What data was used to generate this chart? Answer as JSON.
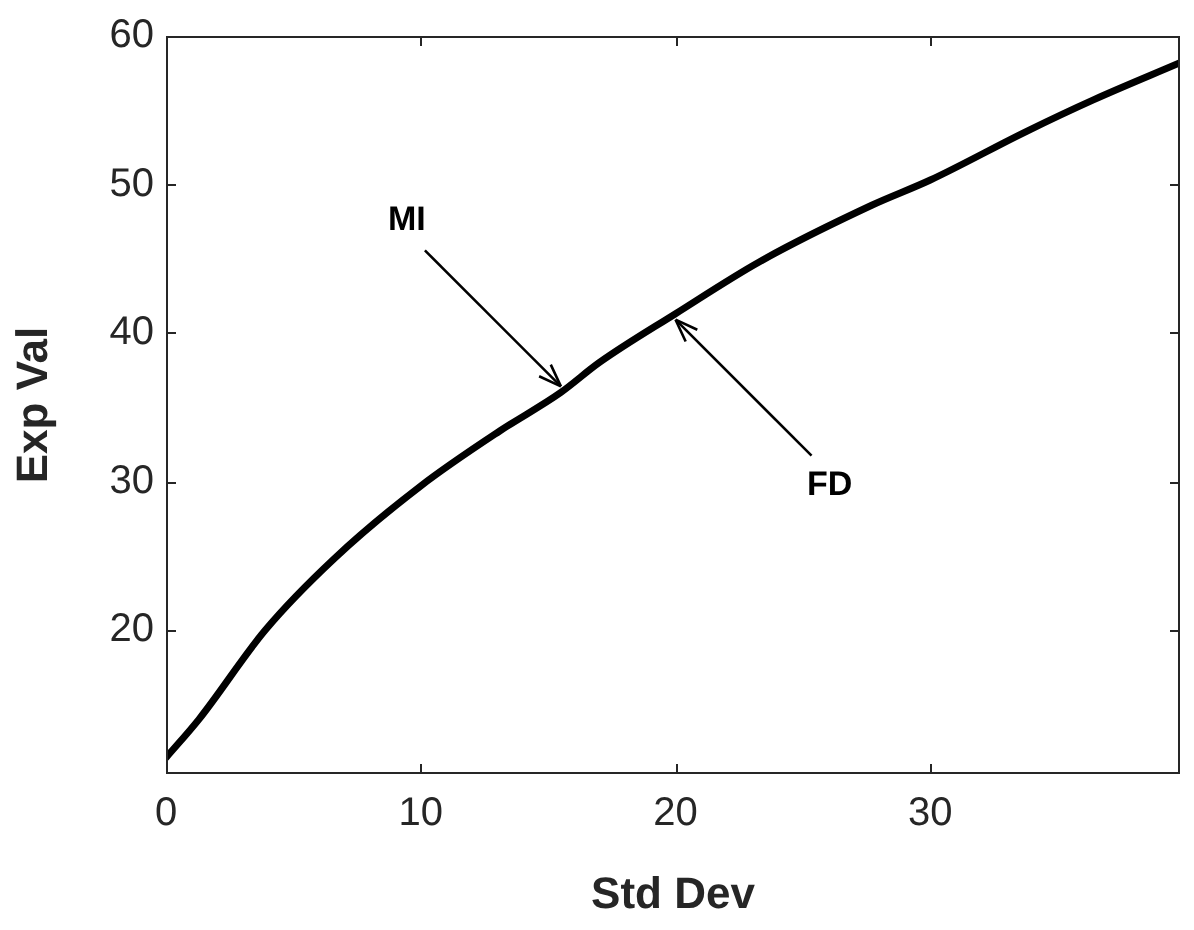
{
  "chart_data": {
    "type": "line",
    "xlabel": "Std Dev",
    "ylabel": "Exp Val",
    "x": [
      0,
      1.3,
      3.9,
      6.6,
      10,
      13.1,
      15.5,
      17,
      20,
      23.3,
      27.7,
      30,
      33.8,
      36.4,
      39.8
    ],
    "series": [
      {
        "color": "#000000",
        "values": [
          11.4,
          14,
          20,
          24.8,
          29.7,
          33.4,
          36,
          38,
          41.3,
          44.8,
          48.6,
          50.3,
          53.6,
          55.7,
          58.2
        ]
      }
    ],
    "xlim": [
      0,
      39.8
    ],
    "xticks": [
      0,
      10,
      20,
      30
    ],
    "ylim": [
      10.3,
      60
    ],
    "yticks": [
      20,
      30,
      40,
      50,
      60
    ],
    "grid": false,
    "legend": false,
    "marker": "none",
    "line_style": "solid",
    "annotations": [
      {
        "text": "MI",
        "x": 15.5,
        "y": 36
      },
      {
        "text": "FD",
        "x": 20,
        "y": 41.3
      }
    ]
  }
}
